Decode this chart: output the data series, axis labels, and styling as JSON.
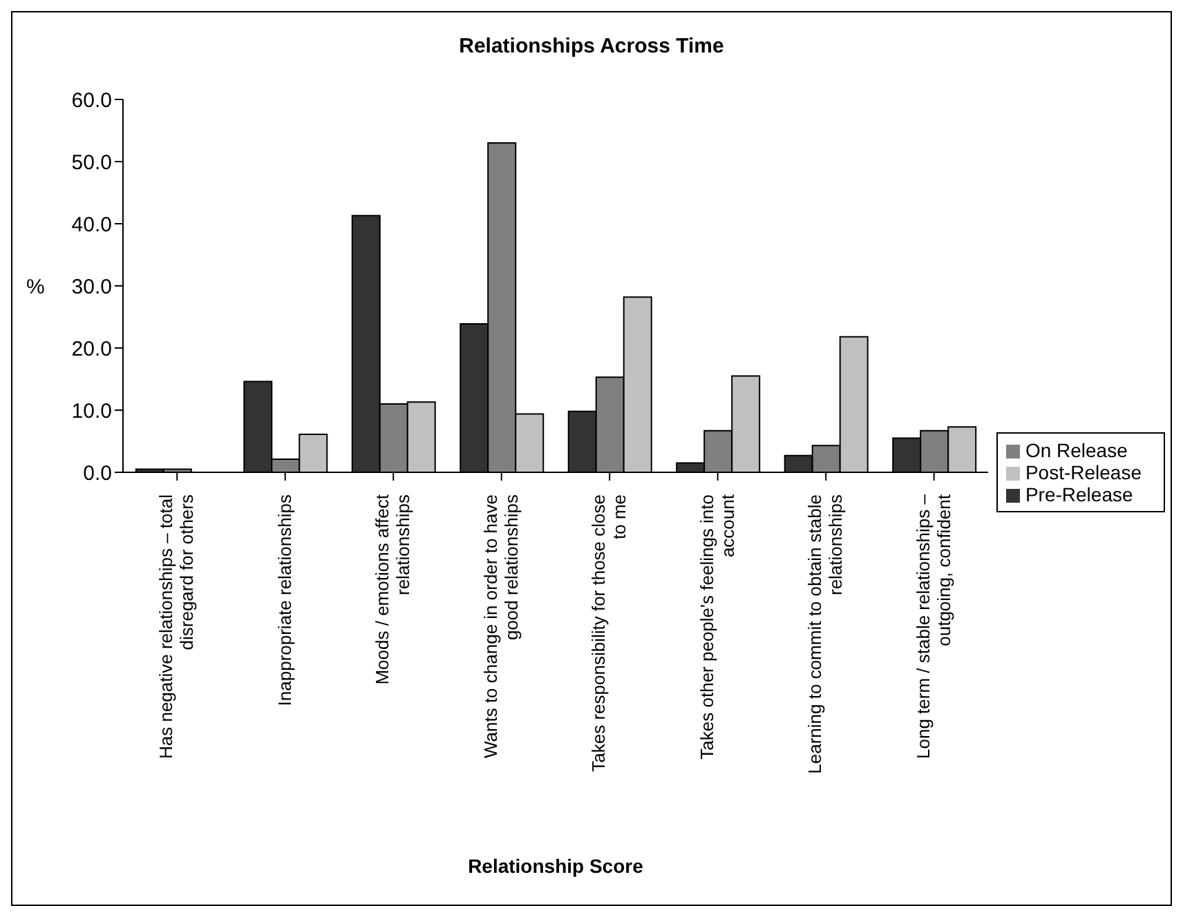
{
  "chart_data": {
    "type": "bar",
    "title": "Relationships Across Time",
    "xlabel": "Relationship Score",
    "ylabel": "%",
    "categories": [
      "Has negative relationships – total disregard for others",
      "Inappropriate relationships",
      "Moods / emotions affect relationships",
      "Wants to change in order to have good relationships",
      "Takes responsibility for those close to me",
      "Takes other people's feelings into account",
      "Learning to commit to obtain stable relationships",
      "Long term / stable relationships – outgoing, confident"
    ],
    "series": [
      {
        "name": "Pre-Release",
        "color": "#333333",
        "values": [
          0.5,
          14.6,
          41.3,
          23.9,
          9.8,
          1.5,
          2.7,
          5.5
        ]
      },
      {
        "name": "On Release",
        "color": "#808080",
        "values": [
          0.5,
          2.1,
          11.0,
          53.0,
          15.3,
          6.7,
          4.3,
          6.7
        ]
      },
      {
        "name": "Post-Release",
        "color": "#c0c0c0",
        "values": [
          0,
          6.1,
          11.3,
          9.4,
          28.2,
          15.5,
          21.8,
          7.3
        ]
      }
    ],
    "ylim": [
      0,
      60
    ],
    "yticks": [
      {
        "value": 0,
        "label": "0.0"
      },
      {
        "value": 10,
        "label": "10.0"
      },
      {
        "value": 20,
        "label": "20.0"
      },
      {
        "value": 30,
        "label": "30.0"
      },
      {
        "value": 40,
        "label": "40.0"
      },
      {
        "value": 50,
        "label": "50.0"
      },
      {
        "value": 60,
        "label": "60.0"
      }
    ],
    "legend": "right"
  }
}
